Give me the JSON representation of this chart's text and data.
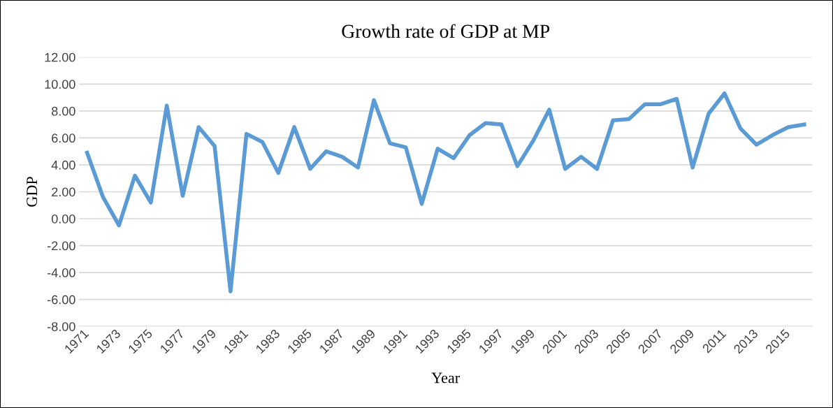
{
  "chart_data": {
    "type": "line",
    "title": "Growth rate of GDP at MP",
    "xlabel": "Year",
    "ylabel": "GDP",
    "categories": [
      "1971",
      null,
      "1973",
      null,
      "1975",
      null,
      "1977",
      null,
      "1979",
      null,
      "1981",
      null,
      "1983",
      null,
      "1985",
      null,
      "1987",
      null,
      "1989",
      null,
      "1991",
      null,
      "1993",
      null,
      "1995",
      null,
      "1997",
      null,
      "1999",
      null,
      "2001",
      null,
      "2003",
      null,
      "2005",
      null,
      "2007",
      null,
      "2009",
      null,
      "2011",
      null,
      "2013",
      null,
      "2015",
      null
    ],
    "series": [
      {
        "color": "#5b9bd5",
        "values": [
          4.9,
          1.6,
          -0.5,
          3.2,
          1.2,
          8.4,
          1.7,
          6.8,
          5.4,
          -5.4,
          6.3,
          5.7,
          3.4,
          6.8,
          3.7,
          5.0,
          4.6,
          3.8,
          8.8,
          5.6,
          5.3,
          1.1,
          5.2,
          4.5,
          6.2,
          7.1,
          7.0,
          3.9,
          5.8,
          8.1,
          3.7,
          4.6,
          3.7,
          7.3,
          7.4,
          8.5,
          8.5,
          8.9,
          3.8,
          7.8,
          9.3,
          6.7,
          5.5,
          6.2,
          6.8,
          7.0
        ]
      }
    ],
    "ylim": [
      -8,
      12
    ],
    "yticks": [
      {
        "value": -8,
        "label": "-8.00"
      },
      {
        "value": -6,
        "label": "-6.00"
      },
      {
        "value": -4,
        "label": "-4.00"
      },
      {
        "value": -2,
        "label": "-2.00"
      },
      {
        "value": 0,
        "label": "0.00"
      },
      {
        "value": 2,
        "label": "2.00"
      },
      {
        "value": 4,
        "label": "4.00"
      },
      {
        "value": 6,
        "label": "6.00"
      },
      {
        "value": 8,
        "label": "8.00"
      },
      {
        "value": 10,
        "label": "10.00"
      },
      {
        "value": 12,
        "label": "12.00"
      }
    ],
    "grid": "y",
    "marker": "none",
    "line_style": "solid"
  }
}
